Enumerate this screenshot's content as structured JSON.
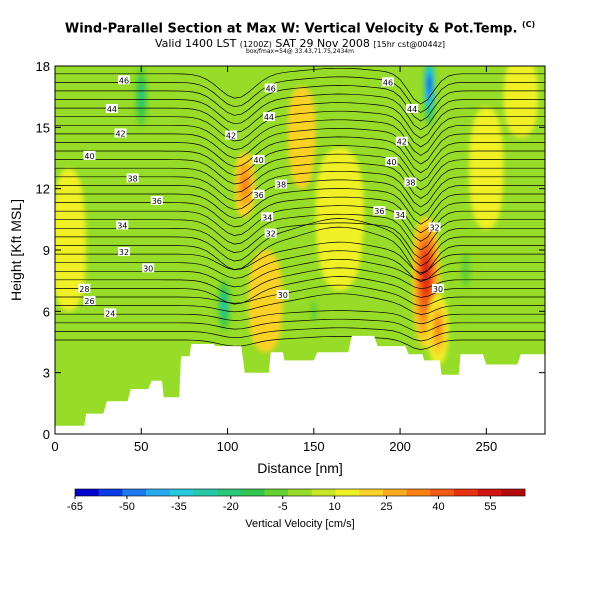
{
  "header": {
    "title": "Wind-Parallel Section at Max W: Vertical Velocity & Pot.Temp.",
    "title_mark": "(C)",
    "valid_prefix": "Valid 1400 LST",
    "valid_utc": "(1200Z)",
    "valid_date": "SAT 29 Nov 2008",
    "valid_suffix": "[15hr cst@0044z]",
    "small_info": "box/fmax=54@ 33.43,71.75,2434m"
  },
  "chart_data": {
    "type": "heatmap",
    "xlabel": "Distance [nm]",
    "ylabel": "Height [Kft MSL]",
    "xlim": [
      0,
      284
    ],
    "ylim": [
      0,
      18
    ],
    "x_ticks": [
      "0",
      "50",
      "100",
      "150",
      "200",
      "250"
    ],
    "x_tick_values": [
      0,
      50,
      100,
      150,
      200,
      250
    ],
    "y_ticks": [
      "0",
      "3",
      "6",
      "9",
      "12",
      "15",
      "18"
    ],
    "y_tick_values": [
      0,
      3,
      6,
      9,
      12,
      15,
      18
    ],
    "colorbar": {
      "label": "Vertical Velocity [cm/s]",
      "range": [
        -65,
        65
      ],
      "tick_labels": [
        "-65",
        "-50",
        "-35",
        "-20",
        "-5",
        "10",
        "25",
        "40",
        "55"
      ],
      "tick_values": [
        -65,
        -50,
        -35,
        -20,
        -5,
        10,
        25,
        40,
        55
      ],
      "colors": [
        "#0000cc",
        "#0a3ce6",
        "#1e78f0",
        "#28aaf0",
        "#28c8dc",
        "#28c8aa",
        "#28c878",
        "#32c850",
        "#64d232",
        "#96dc28",
        "#c8e628",
        "#f0f028",
        "#fad228",
        "#faaa1e",
        "#fa8214",
        "#f05a14",
        "#e6320f",
        "#d21414",
        "#b40a0a"
      ]
    },
    "terrain_profile": [
      [
        0,
        0.4
      ],
      [
        17,
        0.4
      ],
      [
        18,
        1.0
      ],
      [
        28,
        1.0
      ],
      [
        30,
        1.6
      ],
      [
        42,
        1.6
      ],
      [
        44,
        2.2
      ],
      [
        54,
        2.2
      ],
      [
        56,
        2.6
      ],
      [
        62,
        2.6
      ],
      [
        63,
        1.8
      ],
      [
        72,
        1.8
      ],
      [
        73,
        3.8
      ],
      [
        78,
        3.8
      ],
      [
        79,
        4.4
      ],
      [
        92,
        4.4
      ],
      [
        93,
        4.3
      ],
      [
        108,
        4.3
      ],
      [
        110,
        3.0
      ],
      [
        124,
        3.0
      ],
      [
        125,
        4.0
      ],
      [
        132,
        4.0
      ],
      [
        133,
        3.6
      ],
      [
        150,
        3.6
      ],
      [
        152,
        4.0
      ],
      [
        170,
        4.0
      ],
      [
        172,
        4.8
      ],
      [
        185,
        4.8
      ],
      [
        187,
        4.3
      ],
      [
        203,
        4.3
      ],
      [
        205,
        3.9
      ],
      [
        213,
        3.9
      ],
      [
        214,
        3.6
      ],
      [
        223,
        3.6
      ],
      [
        224,
        2.9
      ],
      [
        234,
        2.9
      ],
      [
        235,
        3.9
      ],
      [
        248,
        3.9
      ],
      [
        250,
        3.4
      ],
      [
        268,
        3.4
      ],
      [
        270,
        3.9
      ],
      [
        284,
        3.9
      ]
    ],
    "isentrope_labels": [
      {
        "text": "46",
        "x": 40,
        "y": 17.3
      },
      {
        "text": "44",
        "x": 33,
        "y": 15.9
      },
      {
        "text": "42",
        "x": 38,
        "y": 14.7
      },
      {
        "text": "40",
        "x": 20,
        "y": 13.6
      },
      {
        "text": "38",
        "x": 45,
        "y": 12.5
      },
      {
        "text": "36",
        "x": 59,
        "y": 11.4
      },
      {
        "text": "34",
        "x": 39,
        "y": 10.2
      },
      {
        "text": "32",
        "x": 40,
        "y": 8.9
      },
      {
        "text": "30",
        "x": 54,
        "y": 8.1
      },
      {
        "text": "28",
        "x": 17,
        "y": 7.1
      },
      {
        "text": "26",
        "x": 20,
        "y": 6.5
      },
      {
        "text": "24",
        "x": 32,
        "y": 5.9
      },
      {
        "text": "46",
        "x": 125,
        "y": 16.9
      },
      {
        "text": "44",
        "x": 124,
        "y": 15.5
      },
      {
        "text": "42",
        "x": 102,
        "y": 14.6
      },
      {
        "text": "40",
        "x": 118,
        "y": 13.4
      },
      {
        "text": "38",
        "x": 131,
        "y": 12.2
      },
      {
        "text": "36",
        "x": 118,
        "y": 11.7
      },
      {
        "text": "34",
        "x": 123,
        "y": 10.6
      },
      {
        "text": "32",
        "x": 125,
        "y": 9.8
      },
      {
        "text": "30",
        "x": 132,
        "y": 6.8
      },
      {
        "text": "46",
        "x": 193,
        "y": 17.2
      },
      {
        "text": "44",
        "x": 207,
        "y": 15.9
      },
      {
        "text": "42",
        "x": 201,
        "y": 14.3
      },
      {
        "text": "40",
        "x": 195,
        "y": 13.3
      },
      {
        "text": "38",
        "x": 206,
        "y": 12.3
      },
      {
        "text": "36",
        "x": 188,
        "y": 10.9
      },
      {
        "text": "34",
        "x": 200,
        "y": 10.7
      },
      {
        "text": "32",
        "x": 220,
        "y": 10.1
      },
      {
        "text": "30",
        "x": 222,
        "y": 7.1
      }
    ],
    "field_features": [
      {
        "type": "updraft",
        "x": 215,
        "y": 8.0,
        "w": 8,
        "h_up": 2.6,
        "h_dn": 3.8,
        "value": 55
      },
      {
        "type": "updraft",
        "x": 222,
        "y": 5.2,
        "w": 6,
        "h_up": 1.6,
        "h_dn": 1.8,
        "value": 35
      },
      {
        "type": "updraft",
        "x": 110,
        "y": 12.2,
        "w": 6,
        "h_up": 1.6,
        "h_dn": 1.6,
        "value": 33
      },
      {
        "type": "updraft",
        "x": 122,
        "y": 6.5,
        "w": 10,
        "h_up": 2.5,
        "h_dn": 2.5,
        "value": 20
      },
      {
        "type": "updraft",
        "x": 165,
        "y": 11.0,
        "w": 14,
        "h_up": 3,
        "h_dn": 4,
        "value": 16
      },
      {
        "type": "updraft",
        "x": 8,
        "y": 9.0,
        "w": 10,
        "h_up": 4,
        "h_dn": 3,
        "value": 15
      },
      {
        "type": "updraft",
        "x": 143,
        "y": 15.0,
        "w": 8,
        "h_up": 2,
        "h_dn": 3,
        "value": 18
      },
      {
        "type": "updraft",
        "x": 250,
        "y": 13.0,
        "w": 10,
        "h_up": 3,
        "h_dn": 3,
        "value": 16
      },
      {
        "type": "updraft",
        "x": 270,
        "y": 16.5,
        "w": 10,
        "h_up": 2,
        "h_dn": 2,
        "value": 16
      },
      {
        "type": "downdraft",
        "x": 217,
        "y": 17.2,
        "w": 4,
        "h_up": 1.3,
        "h_dn": 2.4,
        "value": -62
      },
      {
        "type": "downdraft",
        "x": 98,
        "y": 6.3,
        "w": 5,
        "h_up": 1.6,
        "h_dn": 1.6,
        "value": -28
      },
      {
        "type": "downdraft",
        "x": 50,
        "y": 16.5,
        "w": 5,
        "h_up": 2,
        "h_dn": 2,
        "value": -18
      },
      {
        "type": "downdraft",
        "x": 238,
        "y": 8.0,
        "w": 8,
        "h_up": 2.5,
        "h_dn": 2.5,
        "value": -10
      },
      {
        "type": "downdraft",
        "x": 150,
        "y": 6.0,
        "w": 6,
        "h_up": 1.5,
        "h_dn": 1.5,
        "value": -10
      }
    ]
  }
}
